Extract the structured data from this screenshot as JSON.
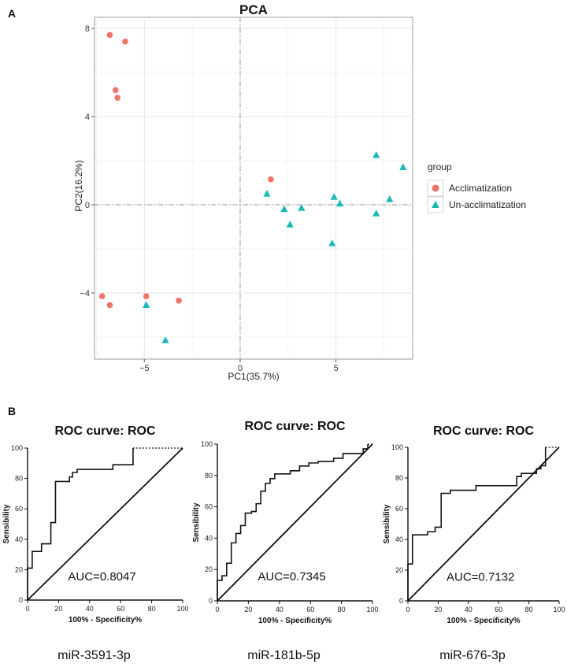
{
  "panels": {
    "a": "A",
    "b": "B"
  },
  "chart_data": [
    {
      "type": "scatter",
      "title": "PCA",
      "xlabel": "PC1(35.7%)",
      "ylabel": "PC2(16.2%)",
      "xlim": [
        -7.6,
        9.0
      ],
      "ylim": [
        -7.0,
        8.5
      ],
      "xticks": [
        -5,
        0,
        5
      ],
      "yticks": [
        -4,
        0,
        4,
        8
      ],
      "grid": true,
      "reference_lines": {
        "x": 0,
        "y": 0
      },
      "legend": {
        "title": "group",
        "position": "right"
      },
      "series": [
        {
          "name": "Acclimatization",
          "color": "#f0736a",
          "marker": "circle",
          "points": [
            [
              -6.8,
              7.7
            ],
            [
              -6.0,
              7.4
            ],
            [
              -6.5,
              5.2
            ],
            [
              -6.4,
              4.85
            ],
            [
              1.6,
              1.15
            ],
            [
              -7.2,
              -4.15
            ],
            [
              -6.8,
              -4.55
            ],
            [
              -4.9,
              -4.15
            ],
            [
              -3.2,
              -4.35
            ]
          ]
        },
        {
          "name": "Un-acclimatization",
          "color": "#1cb8b8",
          "marker": "triangle",
          "points": [
            [
              1.4,
              0.5
            ],
            [
              2.3,
              -0.2
            ],
            [
              2.6,
              -0.9
            ],
            [
              3.2,
              -0.15
            ],
            [
              4.8,
              -1.75
            ],
            [
              4.9,
              0.35
            ],
            [
              5.2,
              0.05
            ],
            [
              7.1,
              2.25
            ],
            [
              7.1,
              -0.4
            ],
            [
              7.8,
              0.25
            ],
            [
              8.5,
              1.7
            ],
            [
              -4.9,
              -4.55
            ],
            [
              -3.9,
              -6.15
            ]
          ]
        }
      ]
    },
    {
      "type": "line",
      "title": "ROC curve: ROC",
      "xlabel": "100% - Specificity%",
      "ylabel": "Sensibility",
      "xlim": [
        0,
        100
      ],
      "ylim": [
        0,
        100
      ],
      "ticks": [
        0,
        20,
        40,
        60,
        80,
        100
      ],
      "annotation": "AUC=0.8047",
      "caption": "miR-3591-3p",
      "curve": [
        [
          0,
          0
        ],
        [
          0,
          21
        ],
        [
          3,
          21
        ],
        [
          3,
          32
        ],
        [
          9,
          32
        ],
        [
          9,
          37
        ],
        [
          15,
          37
        ],
        [
          15,
          51
        ],
        [
          18,
          51
        ],
        [
          18,
          78
        ],
        [
          27,
          78
        ],
        [
          27,
          81
        ],
        [
          29,
          81
        ],
        [
          29,
          84
        ],
        [
          32,
          84
        ],
        [
          32,
          86
        ],
        [
          55,
          86
        ],
        [
          55,
          89
        ],
        [
          68,
          89
        ],
        [
          68,
          100
        ],
        [
          100,
          100
        ]
      ]
    },
    {
      "type": "line",
      "title": "ROC curve: ROC",
      "xlabel": "100% - Specificity%",
      "ylabel": "Sensibility",
      "xlim": [
        0,
        100
      ],
      "ylim": [
        0,
        100
      ],
      "ticks": [
        0,
        20,
        40,
        60,
        80,
        100
      ],
      "annotation": "AUC=0.7345",
      "caption": "miR-181b-5p",
      "curve": [
        [
          0,
          0
        ],
        [
          0,
          13
        ],
        [
          3,
          13
        ],
        [
          3,
          16
        ],
        [
          6,
          16
        ],
        [
          6,
          24
        ],
        [
          9,
          24
        ],
        [
          9,
          37
        ],
        [
          12,
          37
        ],
        [
          12,
          43
        ],
        [
          15,
          43
        ],
        [
          15,
          48
        ],
        [
          18,
          48
        ],
        [
          18,
          56
        ],
        [
          22,
          56
        ],
        [
          22,
          57
        ],
        [
          25,
          57
        ],
        [
          25,
          62
        ],
        [
          28,
          62
        ],
        [
          28,
          70
        ],
        [
          31,
          70
        ],
        [
          31,
          75
        ],
        [
          34,
          75
        ],
        [
          34,
          78
        ],
        [
          37,
          78
        ],
        [
          37,
          81
        ],
        [
          47,
          81
        ],
        [
          47,
          83
        ],
        [
          53,
          83
        ],
        [
          53,
          86
        ],
        [
          59,
          86
        ],
        [
          59,
          88
        ],
        [
          65,
          88
        ],
        [
          65,
          89
        ],
        [
          75,
          89
        ],
        [
          75,
          91
        ],
        [
          81,
          91
        ],
        [
          81,
          94
        ],
        [
          94,
          94
        ],
        [
          94,
          97
        ],
        [
          97,
          97
        ],
        [
          97,
          100
        ],
        [
          100,
          100
        ]
      ]
    },
    {
      "type": "line",
      "title": "ROC curve: ROC",
      "xlabel": "100% - Specificity%",
      "ylabel": "Sensibility",
      "xlim": [
        0,
        100
      ],
      "ylim": [
        0,
        100
      ],
      "ticks": [
        0,
        20,
        40,
        60,
        80,
        100
      ],
      "annotation": "AUC=0.7132",
      "caption": "miR-676-3p",
      "curve": [
        [
          0,
          0
        ],
        [
          0,
          24
        ],
        [
          3,
          24
        ],
        [
          3,
          43
        ],
        [
          13,
          43
        ],
        [
          13,
          45
        ],
        [
          18,
          45
        ],
        [
          18,
          48
        ],
        [
          22,
          48
        ],
        [
          22,
          70
        ],
        [
          28,
          70
        ],
        [
          28,
          72
        ],
        [
          45,
          72
        ],
        [
          45,
          75
        ],
        [
          72,
          75
        ],
        [
          72,
          81
        ],
        [
          75,
          81
        ],
        [
          75,
          83
        ],
        [
          85,
          83
        ],
        [
          85,
          86
        ],
        [
          88,
          86
        ],
        [
          88,
          88
        ],
        [
          91,
          88
        ],
        [
          91,
          100
        ],
        [
          100,
          100
        ]
      ]
    }
  ]
}
